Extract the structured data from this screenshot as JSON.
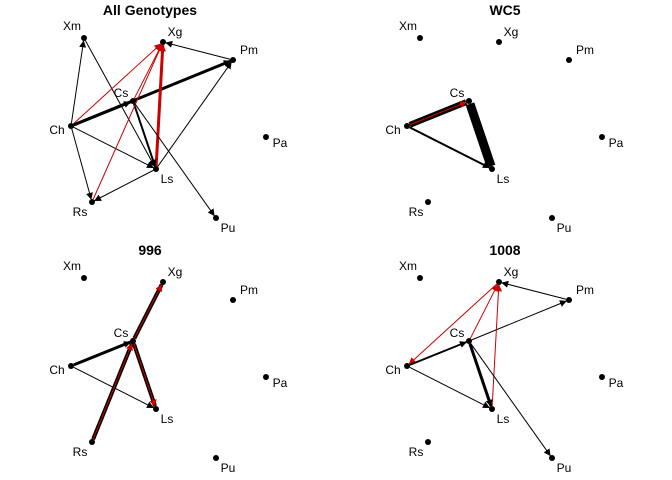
{
  "colors": {
    "black": "#000000",
    "red": "#cc0000",
    "background": "#ffffff"
  },
  "panels": [
    {
      "id": "all",
      "title": "All Genotypes",
      "edges": [
        {
          "from": "Ch",
          "to": "Xm",
          "color": "black",
          "weight": 1
        },
        {
          "from": "Xm",
          "to": "Ls",
          "color": "black",
          "weight": 1
        },
        {
          "from": "Ch",
          "to": "Xg",
          "color": "red",
          "weight": 1
        },
        {
          "from": "Pm",
          "to": "Xg",
          "color": "black",
          "weight": 1
        },
        {
          "from": "Ch",
          "to": "Pm",
          "color": "black",
          "weight": 3
        },
        {
          "from": "Cs",
          "to": "Pm",
          "color": "black",
          "weight": 2
        },
        {
          "from": "Ls",
          "to": "Pm",
          "color": "black",
          "weight": 1
        },
        {
          "from": "Ch",
          "to": "Cs",
          "color": "black",
          "weight": 3
        },
        {
          "from": "Cs",
          "to": "Xg",
          "color": "red",
          "weight": 1
        },
        {
          "from": "Ls",
          "to": "Xg",
          "color": "red",
          "weight": 3
        },
        {
          "from": "Cs",
          "to": "Ls",
          "color": "black",
          "weight": 2
        },
        {
          "from": "Ch",
          "to": "Ls",
          "color": "black",
          "weight": 1
        },
        {
          "from": "Ch",
          "to": "Rs",
          "color": "black",
          "weight": 1
        },
        {
          "from": "Rs",
          "to": "Xg",
          "color": "red",
          "weight": 1
        },
        {
          "from": "Ls",
          "to": "Rs",
          "color": "black",
          "weight": 1
        },
        {
          "from": "Cs",
          "to": "Pu",
          "color": "black",
          "weight": 1
        }
      ]
    },
    {
      "id": "wc5",
      "title": "WC5",
      "edges": [
        {
          "from": "Ch",
          "to": "Cs",
          "color": "black",
          "weight": 6
        },
        {
          "from": "Ch",
          "to": "Cs",
          "color": "red",
          "weight": 1
        },
        {
          "from": "Cs",
          "to": "Ls",
          "color": "black",
          "weight": 9
        },
        {
          "from": "Ch",
          "to": "Ls",
          "color": "black",
          "weight": 2
        }
      ]
    },
    {
      "id": "996",
      "title": "996",
      "edges": [
        {
          "from": "Cs",
          "to": "Xg",
          "color": "black",
          "weight": 4
        },
        {
          "from": "Cs",
          "to": "Xg",
          "color": "red",
          "weight": 1
        },
        {
          "from": "Ch",
          "to": "Cs",
          "color": "black",
          "weight": 3
        },
        {
          "from": "Ch",
          "to": "Ls",
          "color": "black",
          "weight": 1
        },
        {
          "from": "Cs",
          "to": "Ls",
          "color": "black",
          "weight": 4
        },
        {
          "from": "Cs",
          "to": "Ls",
          "color": "red",
          "weight": 1
        },
        {
          "from": "Rs",
          "to": "Cs",
          "color": "black",
          "weight": 4
        },
        {
          "from": "Rs",
          "to": "Cs",
          "color": "red",
          "weight": 1
        }
      ]
    },
    {
      "id": "1008",
      "title": "1008",
      "edges": [
        {
          "from": "Pm",
          "to": "Xg",
          "color": "black",
          "weight": 1
        },
        {
          "from": "Cs",
          "to": "Pm",
          "color": "black",
          "weight": 1
        },
        {
          "from": "Xg",
          "to": "Ch",
          "color": "red",
          "weight": 1
        },
        {
          "from": "Ch",
          "to": "Cs",
          "color": "black",
          "weight": 2
        },
        {
          "from": "Cs",
          "to": "Xg",
          "color": "red",
          "weight": 1
        },
        {
          "from": "Ls",
          "to": "Xg",
          "color": "red",
          "weight": 1
        },
        {
          "from": "Cs",
          "to": "Ls",
          "color": "black",
          "weight": 3
        },
        {
          "from": "Ch",
          "to": "Ls",
          "color": "black",
          "weight": 1
        },
        {
          "from": "Cs",
          "to": "Pu",
          "color": "black",
          "weight": 1
        }
      ]
    }
  ],
  "node_names": [
    "Xm",
    "Xg",
    "Pm",
    "Cs",
    "Ch",
    "Pa",
    "Ls",
    "Rs",
    "Pu"
  ]
}
